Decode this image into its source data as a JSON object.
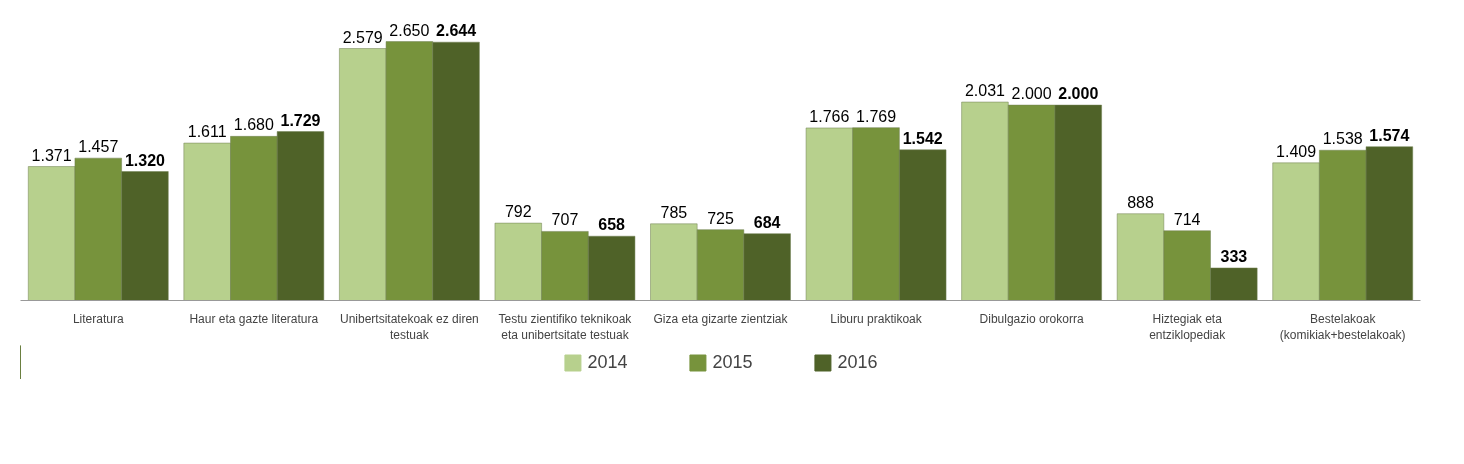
{
  "chart_data": {
    "type": "bar",
    "categories": [
      "Literatura",
      "Haur eta gazte literatura",
      "Unibertsitatekoak ez diren testuak",
      "Testu zientifiko teknikoak eta unibertsitate testuak",
      "Giza eta gizarte zientziak",
      "Liburu praktikoak",
      "Dibulgazio orokorra",
      "Hiztegiak eta entziklopediak",
      "Bestelakoak (komikiak+bestelakoak)"
    ],
    "series": [
      {
        "name": "2014",
        "color": "#b7d08d",
        "values": [
          1371,
          1611,
          2579,
          792,
          785,
          1766,
          2031,
          888,
          1409
        ],
        "value_labels": [
          "1.371",
          "1.611",
          "2.579",
          "792",
          "785",
          "1.766",
          "2.031",
          "888",
          "1.409"
        ]
      },
      {
        "name": "2015",
        "color": "#77933c",
        "values": [
          1457,
          1680,
          2650,
          707,
          725,
          1769,
          2000,
          714,
          1538
        ],
        "value_labels": [
          "1.457",
          "1.680",
          "2.650",
          "707",
          "725",
          "1.769",
          "2.000",
          "714",
          "1.538"
        ]
      },
      {
        "name": "2016",
        "color": "#4f6228",
        "values": [
          1320,
          1729,
          2644,
          658,
          684,
          1542,
          2000,
          333,
          1574
        ],
        "value_labels": [
          "1.320",
          "1.729",
          "2.644",
          "658",
          "684",
          "1.542",
          "2.000",
          "333",
          "1.574"
        ]
      }
    ],
    "tick_labels": "x",
    "legend": "bottom"
  }
}
